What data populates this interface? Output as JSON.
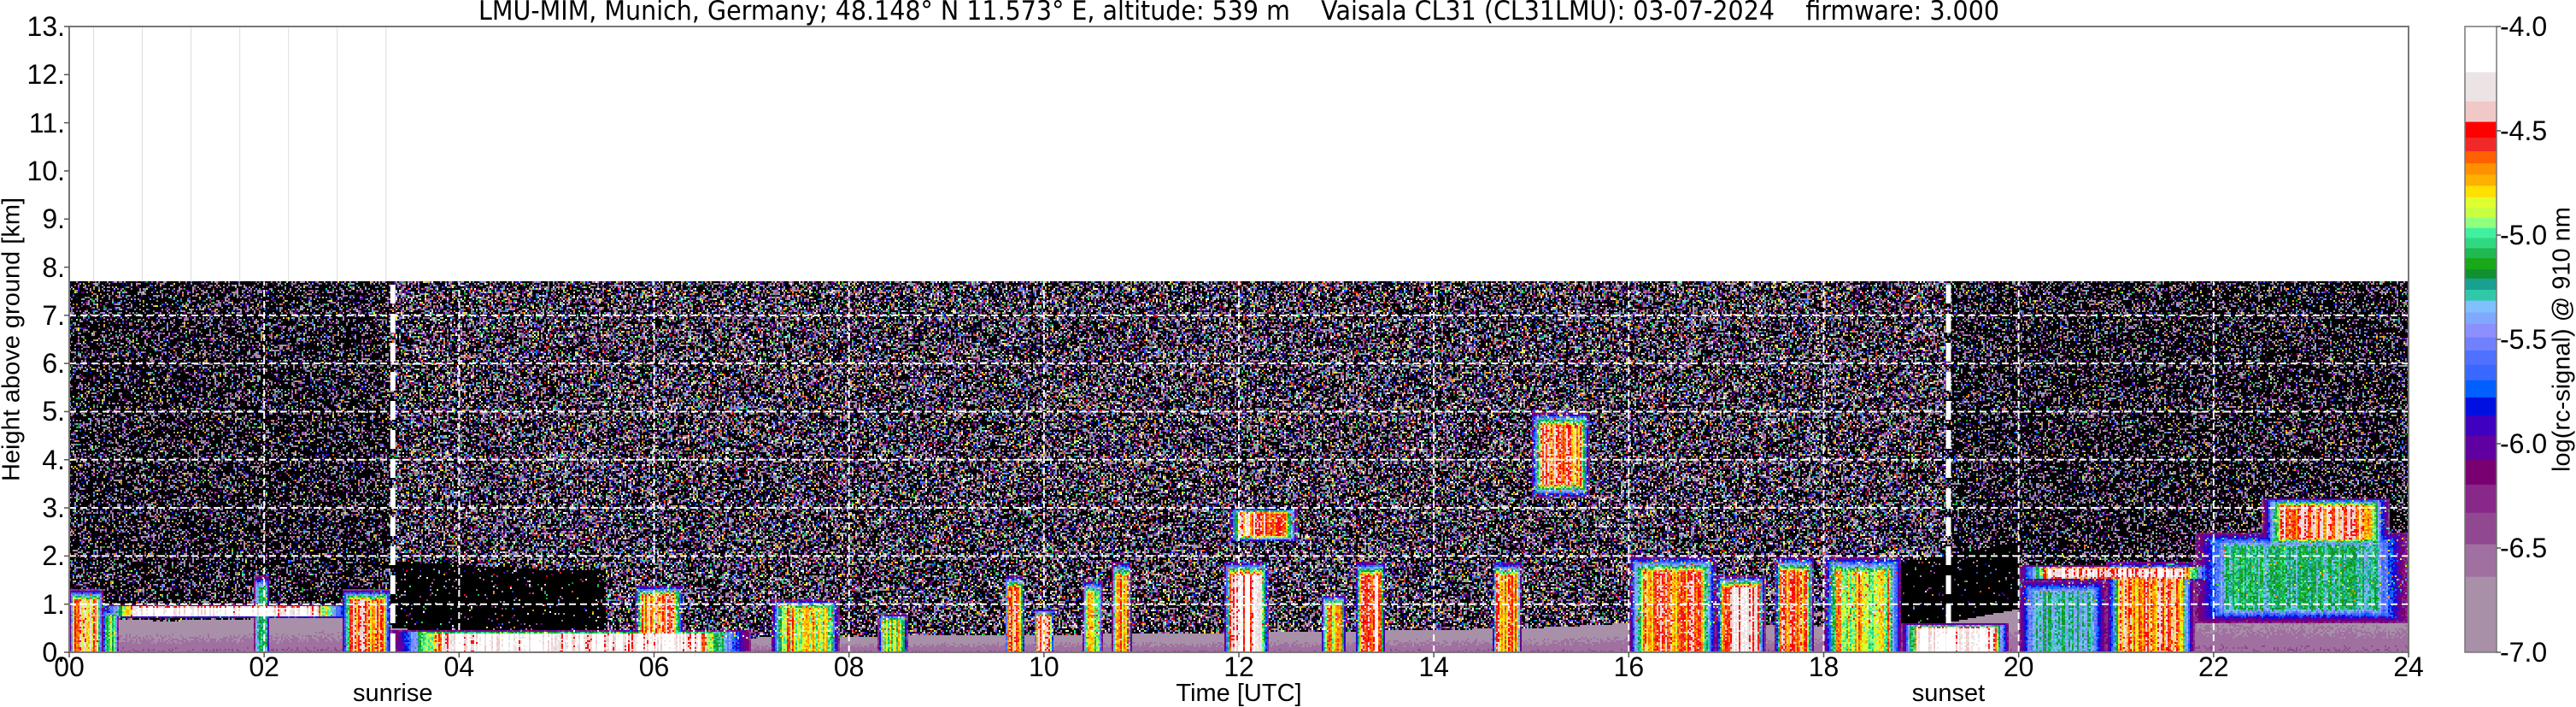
{
  "title": "LMU-MIM, Munich, Germany; 48.148° N 11.573° E, altitude: 539 m    Vaisala CL31 (CL31LMU): 03-07-2024    firmware: 3.000",
  "chart_data": {
    "type": "heatmap",
    "title": "LMU-MIM, Munich, Germany; 48.148° N 11.573° E, altitude: 539 m    Vaisala CL31 (CL31LMU): 03-07-2024    firmware: 3.000",
    "xlabel": "Time [UTC]",
    "ylabel": "Height above ground [km]",
    "xlim": [
      0,
      24
    ],
    "ylim": [
      0,
      13
    ],
    "data_max_height_km": 7.7,
    "xticks": [
      "00",
      "02",
      "04",
      "06",
      "08",
      "10",
      "12",
      "14",
      "16",
      "18",
      "20",
      "22",
      "24"
    ],
    "yticks": [
      "0.",
      "1.",
      "2.",
      "3.",
      "4.",
      "5.",
      "6.",
      "7.",
      "8.",
      "9.",
      "10.",
      "11.",
      "12.",
      "13."
    ],
    "grid": true,
    "annotations": [
      {
        "label": "sunrise",
        "time_h": 3.32
      },
      {
        "label": "sunset",
        "time_h": 19.28
      }
    ],
    "colorbar": {
      "label": "log(rc-signal) @ 910 nm",
      "range": [
        -7.0,
        -4.0
      ],
      "ticks": [
        "-4.0",
        "-4.5",
        "-5.0",
        "-5.5",
        "-6.0",
        "-6.5",
        "-7.0"
      ],
      "bounds": [
        -7.0,
        -6.636,
        -6.48,
        -6.329,
        -6.194,
        -6.075,
        -5.96,
        -5.863,
        -5.776,
        -5.694,
        -5.62,
        -5.551,
        -5.488,
        -5.423,
        -5.369,
        -5.312,
        -5.26,
        -5.206,
        -5.163,
        -5.109,
        -5.061,
        -5.012,
        -4.964,
        -4.916,
        -4.866,
        -4.817,
        -4.762,
        -4.708,
        -4.654,
        -4.596,
        -4.531,
        -4.455,
        -4.357,
        -4.217,
        -4.0
      ],
      "colors": [
        "#a890a8",
        "#a070a0",
        "#904890",
        "#882888",
        "#780070",
        "#6000a0",
        "#4000c0",
        "#0010e0",
        "#0060ff",
        "#3868ff",
        "#5070ff",
        "#7080ff",
        "#8c90ff",
        "#80a8ff",
        "#80c0ff",
        "#30c8a8",
        "#18a090",
        "#109030",
        "#18a818",
        "#20b850",
        "#30d880",
        "#40f0a0",
        "#90ff80",
        "#c8ff40",
        "#e0ff30",
        "#ffe000",
        "#ffb000",
        "#ff9000",
        "#ff6000",
        "#f02828",
        "#ff0000",
        "#f0c8c8",
        "#ece4e4",
        "#ffffff"
      ]
    },
    "aerosol_layer_top_km": [
      [
        0,
        0.7
      ],
      [
        1,
        0.65
      ],
      [
        2,
        0.7
      ],
      [
        2.8,
        0.8
      ],
      [
        3.3,
        0.5
      ],
      [
        5,
        0.3
      ],
      [
        7,
        0.3
      ],
      [
        9,
        0.35
      ],
      [
        12,
        0.4
      ],
      [
        15,
        0.5
      ],
      [
        16,
        0.6
      ],
      [
        19,
        0.5
      ],
      [
        20,
        0.9
      ],
      [
        22,
        1.2
      ],
      [
        24,
        1.0
      ]
    ],
    "signal_features": [
      {
        "t": [
          0.0,
          0.35
        ],
        "z_km": [
          0,
          1.3
        ],
        "peak": -4.6
      },
      {
        "t": [
          0.35,
          0.5
        ],
        "z_km": [
          0,
          0.9
        ],
        "peak": -5.0
      },
      {
        "t": [
          0.3,
          2.9
        ],
        "z_km": [
          0.72,
          0.98
        ],
        "peak": -4.1
      },
      {
        "t": [
          1.9,
          2.05
        ],
        "z_km": [
          0,
          1.6
        ],
        "peak": -5.2
      },
      {
        "t": [
          2.8,
          3.3
        ],
        "z_km": [
          0,
          1.3
        ],
        "peak": -4.6
      },
      {
        "t": [
          3.3,
          7.0
        ],
        "z_km": [
          0,
          0.45
        ],
        "peak": -4.15
      },
      {
        "t": [
          5.8,
          6.3
        ],
        "z_km": [
          0,
          1.4
        ],
        "peak": -4.6
      },
      {
        "t": [
          7.2,
          7.9
        ],
        "z_km": [
          0,
          1.1
        ],
        "peak": -4.8
      },
      {
        "t": [
          8.3,
          8.6
        ],
        "z_km": [
          0,
          0.8
        ],
        "peak": -4.9
      },
      {
        "t": [
          9.6,
          9.8
        ],
        "z_km": [
          0,
          1.6
        ],
        "peak": -4.6
      },
      {
        "t": [
          9.9,
          10.1
        ],
        "z_km": [
          0,
          0.9
        ],
        "peak": -4.5
      },
      {
        "t": [
          10.4,
          10.6
        ],
        "z_km": [
          0,
          1.5
        ],
        "peak": -4.9
      },
      {
        "t": [
          10.7,
          10.9
        ],
        "z_km": [
          0,
          1.9
        ],
        "peak": -4.7
      },
      {
        "t": [
          11.85,
          12.3
        ],
        "z_km": [
          0,
          1.9
        ],
        "peak": -4.3
      },
      {
        "t": [
          11.9,
          12.6
        ],
        "z_km": [
          2.3,
          3.0
        ],
        "peak": -4.5
      },
      {
        "t": [
          12.85,
          13.1
        ],
        "z_km": [
          0,
          1.2
        ],
        "peak": -4.8
      },
      {
        "t": [
          13.2,
          13.5
        ],
        "z_km": [
          0,
          1.9
        ],
        "peak": -4.4
      },
      {
        "t": [
          14.6,
          14.9
        ],
        "z_km": [
          0,
          1.9
        ],
        "peak": -4.6
      },
      {
        "t": [
          15.0,
          15.6
        ],
        "z_km": [
          3.2,
          5.0
        ],
        "peak": -4.6
      },
      {
        "t": [
          16.0,
          16.9
        ],
        "z_km": [
          0,
          2.0
        ],
        "peak": -4.6
      },
      {
        "t": [
          16.9,
          17.4
        ],
        "z_km": [
          0,
          1.6
        ],
        "peak": -4.4
      },
      {
        "t": [
          17.5,
          17.9
        ],
        "z_km": [
          0,
          2.0
        ],
        "peak": -4.6
      },
      {
        "t": [
          18.0,
          18.8
        ],
        "z_km": [
          0,
          2.0
        ],
        "peak": -4.8
      },
      {
        "t": [
          18.8,
          19.9
        ],
        "z_km": [
          0,
          0.6
        ],
        "peak": -4.2
      },
      {
        "t": [
          20.0,
          20.9
        ],
        "z_km": [
          0,
          1.5
        ],
        "peak": -5.3
      },
      {
        "t": [
          20.0,
          22.0
        ],
        "z_km": [
          1.5,
          1.8
        ],
        "peak": -4.3
      },
      {
        "t": [
          20.9,
          21.8
        ],
        "z_km": [
          0,
          1.9
        ],
        "peak": -4.6
      },
      {
        "t": [
          21.8,
          24.0
        ],
        "z_km": [
          0.6,
          2.5
        ],
        "peak": -5.2
      },
      {
        "t": [
          22.5,
          23.8
        ],
        "z_km": [
          2.2,
          3.2
        ],
        "peak": -4.5
      }
    ]
  }
}
